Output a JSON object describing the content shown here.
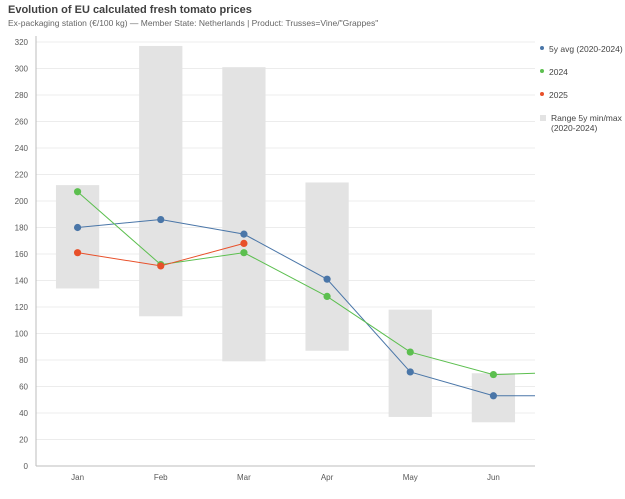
{
  "header": {
    "title": "Evolution of EU calculated fresh tomato prices",
    "subtitle": "Ex-packaging station (€/100 kg) — Member State: Netherlands | Product: Trusses=Vine/\"Grappes\""
  },
  "legend": {
    "items": [
      {
        "label": "5y avg (2020-2024)",
        "color": "#4a76a8",
        "shape": "dot"
      },
      {
        "label": "2024",
        "color": "#5cbf4f",
        "shape": "dot"
      },
      {
        "label": "2025",
        "color": "#e8502a",
        "shape": "dot"
      },
      {
        "label": "Range 5y min/max (2020-2024)",
        "color": "#e3e3e3",
        "shape": "square"
      }
    ]
  },
  "chart_data": {
    "type": "line",
    "title": "Evolution of EU calculated fresh tomato prices",
    "xlabel": "",
    "ylabel": "",
    "ylim": [
      0,
      320
    ],
    "yticks": [
      0,
      20,
      40,
      60,
      80,
      100,
      120,
      140,
      160,
      180,
      200,
      220,
      240,
      260,
      280,
      300,
      320
    ],
    "categories": [
      "Jan",
      "Feb",
      "Mar",
      "Apr",
      "May",
      "Jun"
    ],
    "range": {
      "name": "Range 5y min/max (2020-2024)",
      "min": [
        134,
        113,
        79,
        87,
        37,
        33
      ],
      "max": [
        212,
        317,
        301,
        214,
        118,
        70
      ]
    },
    "series": [
      {
        "name": "5y avg (2020-2024)",
        "color": "#4a76a8",
        "values": [
          180,
          186,
          175,
          141,
          71,
          53
        ],
        "tail": 53
      },
      {
        "name": "2024",
        "color": "#5cbf4f",
        "values": [
          207,
          152,
          161,
          128,
          86,
          69
        ],
        "tail": 70
      },
      {
        "name": "2025",
        "color": "#e8502a",
        "values": [
          161,
          151,
          168,
          null,
          null,
          null
        ],
        "tail": null
      }
    ]
  }
}
